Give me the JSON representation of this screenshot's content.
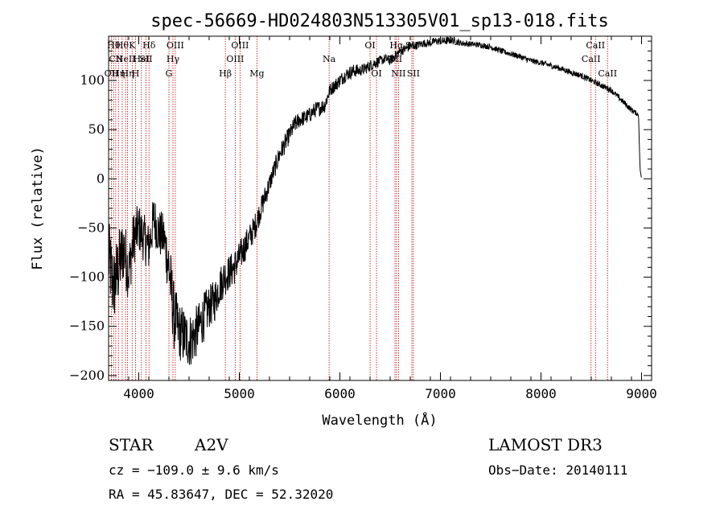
{
  "chart_data": {
    "type": "line",
    "title": "spec-56669-HD024803N513305V01_sp13-018.fits",
    "xlabel": "Wavelength (Å)",
    "ylabel": "Flux (relative)",
    "xlim": [
      3700,
      9100
    ],
    "ylim": [
      -205,
      145
    ],
    "x_ticks": [
      4000,
      5000,
      6000,
      7000,
      8000,
      9000
    ],
    "y_ticks": [
      -200,
      -150,
      -100,
      -50,
      0,
      50,
      100
    ],
    "grid": false,
    "series": [
      {
        "name": "spectrum",
        "x": [
          3700,
          3750,
          3800,
          3850,
          3900,
          3950,
          4000,
          4050,
          4100,
          4150,
          4200,
          4250,
          4300,
          4350,
          4400,
          4450,
          4500,
          4550,
          4600,
          4650,
          4700,
          4750,
          4800,
          4850,
          4900,
          4950,
          5000,
          5050,
          5100,
          5150,
          5200,
          5250,
          5300,
          5350,
          5400,
          5450,
          5500,
          5550,
          5600,
          5650,
          5700,
          5750,
          5800,
          5850,
          5900,
          5950,
          6000,
          6050,
          6100,
          6150,
          6200,
          6250,
          6300,
          6350,
          6400,
          6450,
          6500,
          6550,
          6600,
          6650,
          6700,
          6750,
          6800,
          6850,
          6900,
          6950,
          7000,
          7050,
          7100,
          7150,
          7200,
          7300,
          7400,
          7500,
          7600,
          7700,
          7800,
          7900,
          8000,
          8100,
          8200,
          8300,
          8400,
          8500,
          8600,
          8700,
          8800,
          8900,
          8970,
          8985,
          9000
        ],
        "y": [
          -80,
          -110,
          -90,
          -70,
          -95,
          -60,
          -50,
          -60,
          -70,
          -40,
          -55,
          -60,
          -90,
          -140,
          -155,
          -160,
          -165,
          -160,
          -150,
          -140,
          -130,
          -125,
          -110,
          -100,
          -95,
          -90,
          -80,
          -70,
          -60,
          -50,
          -35,
          -20,
          -5,
          10,
          25,
          35,
          45,
          55,
          60,
          62,
          65,
          70,
          72,
          75,
          90,
          95,
          100,
          105,
          108,
          110,
          110,
          112,
          115,
          118,
          120,
          122,
          120,
          125,
          130,
          132,
          135,
          135,
          137,
          138,
          138,
          140,
          140,
          140,
          141,
          140,
          138,
          137,
          136,
          134,
          130,
          127,
          124,
          120,
          118,
          115,
          112,
          108,
          105,
          100,
          95,
          90,
          80,
          70,
          65,
          10,
          0
        ],
        "noise_amplitude": [
          40,
          40,
          38,
          35,
          30,
          28,
          25,
          25,
          25,
          25,
          25,
          25,
          35,
          35,
          30,
          30,
          28,
          28,
          25,
          25,
          22,
          22,
          20,
          20,
          18,
          18,
          16,
          16,
          14,
          14,
          12,
          12,
          10,
          10,
          10,
          10,
          9,
          9,
          8,
          8,
          8,
          8,
          8,
          8,
          7,
          7,
          7,
          7,
          7,
          7,
          6,
          6,
          6,
          6,
          5,
          5,
          5,
          5,
          5,
          5,
          5,
          4,
          4,
          4,
          4,
          4,
          4,
          4,
          4,
          4,
          3,
          3,
          3,
          3,
          3,
          3,
          3,
          3,
          3,
          3,
          3,
          3,
          3,
          3,
          3,
          3,
          3,
          3,
          2,
          0,
          0
        ]
      }
    ],
    "line_markers": [
      {
        "x": 3728,
        "labels": [
          "OII"
        ],
        "row": 2
      },
      {
        "x": 3750,
        "labels": [
          "Hθ"
        ],
        "row": 0
      },
      {
        "x": 3771,
        "labels": [
          "CII"
        ],
        "row": 1
      },
      {
        "x": 3798,
        "labels": [
          "Hη"
        ],
        "row": 2
      },
      {
        "x": 3835,
        "labels": [
          "Hθ"
        ],
        "row": 0
      },
      {
        "x": 3869,
        "labels": [
          "NeII"
        ],
        "row": 1
      },
      {
        "x": 3889,
        "labels": [
          "Hη"
        ],
        "row": 2
      },
      {
        "x": 3934,
        "labels": [
          "K"
        ],
        "row": 0
      },
      {
        "x": 3968,
        "labels": [
          "H"
        ],
        "row": 2
      },
      {
        "x": 4026,
        "labels": [
          "HeI"
        ],
        "row": 1
      },
      {
        "x": 4072,
        "labels": [
          "SII"
        ],
        "row": 1
      },
      {
        "x": 4102,
        "labels": [
          "Hδ"
        ],
        "row": 0
      },
      {
        "x": 4300,
        "labels": [
          "G"
        ],
        "row": 2
      },
      {
        "x": 4340,
        "labels": [
          "Hγ"
        ],
        "row": 1
      },
      {
        "x": 4363,
        "labels": [
          "OIII"
        ],
        "row": 0
      },
      {
        "x": 4861,
        "labels": [
          "Hβ"
        ],
        "row": 2
      },
      {
        "x": 4959,
        "labels": [
          "OIII"
        ],
        "row": 1
      },
      {
        "x": 5007,
        "labels": [
          "OIII"
        ],
        "row": 0
      },
      {
        "x": 5175,
        "labels": [
          "Mg"
        ],
        "row": 2
      },
      {
        "x": 5893,
        "labels": [
          "Na"
        ],
        "row": 1
      },
      {
        "x": 6300,
        "labels": [
          "OI"
        ],
        "row": 0
      },
      {
        "x": 6364,
        "labels": [
          "OI"
        ],
        "row": 2
      },
      {
        "x": 6548,
        "labels": [
          "NII"
        ],
        "row": 1
      },
      {
        "x": 6563,
        "labels": [
          "Hα"
        ],
        "row": 0
      },
      {
        "x": 6583,
        "labels": [
          "NII"
        ],
        "row": 2
      },
      {
        "x": 6716,
        "labels": [
          "SII"
        ],
        "row": 0
      },
      {
        "x": 6731,
        "labels": [
          "SII"
        ],
        "row": 2
      },
      {
        "x": 8498,
        "labels": [
          "CaII"
        ],
        "row": 1
      },
      {
        "x": 8542,
        "labels": [
          "CaII"
        ],
        "row": 0
      },
      {
        "x": 8662,
        "labels": [
          "CaII"
        ],
        "row": 2
      }
    ]
  },
  "info": {
    "star_class": "STAR",
    "subclass": "A2V",
    "survey": "LAMOST DR3",
    "cz": "cz = −109.0 ± 9.6 km/s",
    "obs_date": "Obs−Date: 20140111",
    "radec": "RA =  45.83647, DEC =  52.32020"
  },
  "colors": {
    "line": "#000000",
    "marker": "#cc0000",
    "background": "#ffffff"
  }
}
